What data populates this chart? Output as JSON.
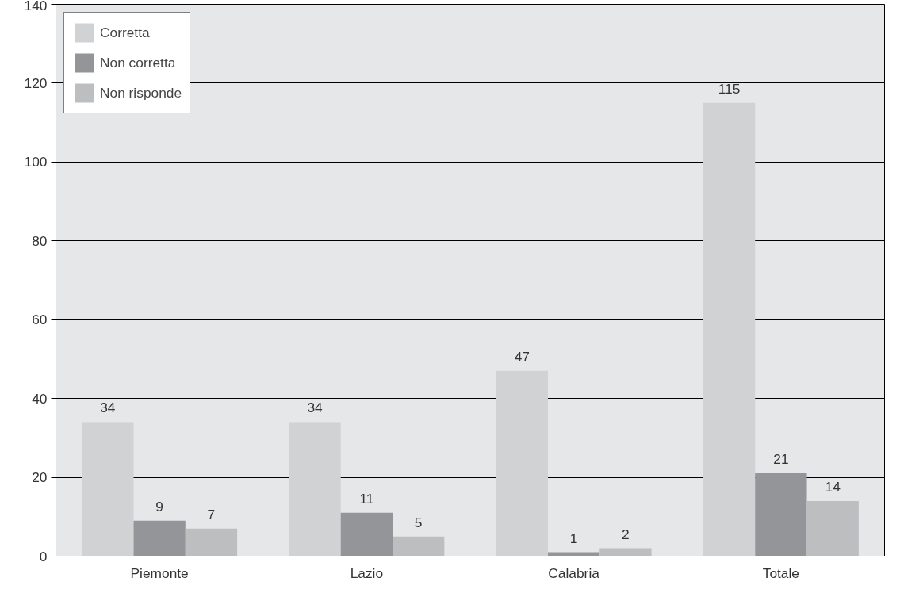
{
  "chart_data": {
    "type": "bar",
    "categories": [
      "Piemonte",
      "Lazio",
      "Calabria",
      "Totale"
    ],
    "series": [
      {
        "name": "Corretta",
        "color": "#d1d2d4",
        "values": [
          34,
          34,
          47,
          115
        ]
      },
      {
        "name": "Non corretta",
        "color": "#939598",
        "values": [
          9,
          11,
          1,
          21
        ]
      },
      {
        "name": "Non risponde",
        "color": "#bcbec0",
        "values": [
          7,
          5,
          2,
          14
        ]
      }
    ],
    "ylim": [
      0,
      140
    ],
    "yticks": [
      0,
      20,
      40,
      60,
      80,
      100,
      120,
      140
    ],
    "grid": "y",
    "legend": "top left",
    "data_labels": true
  }
}
